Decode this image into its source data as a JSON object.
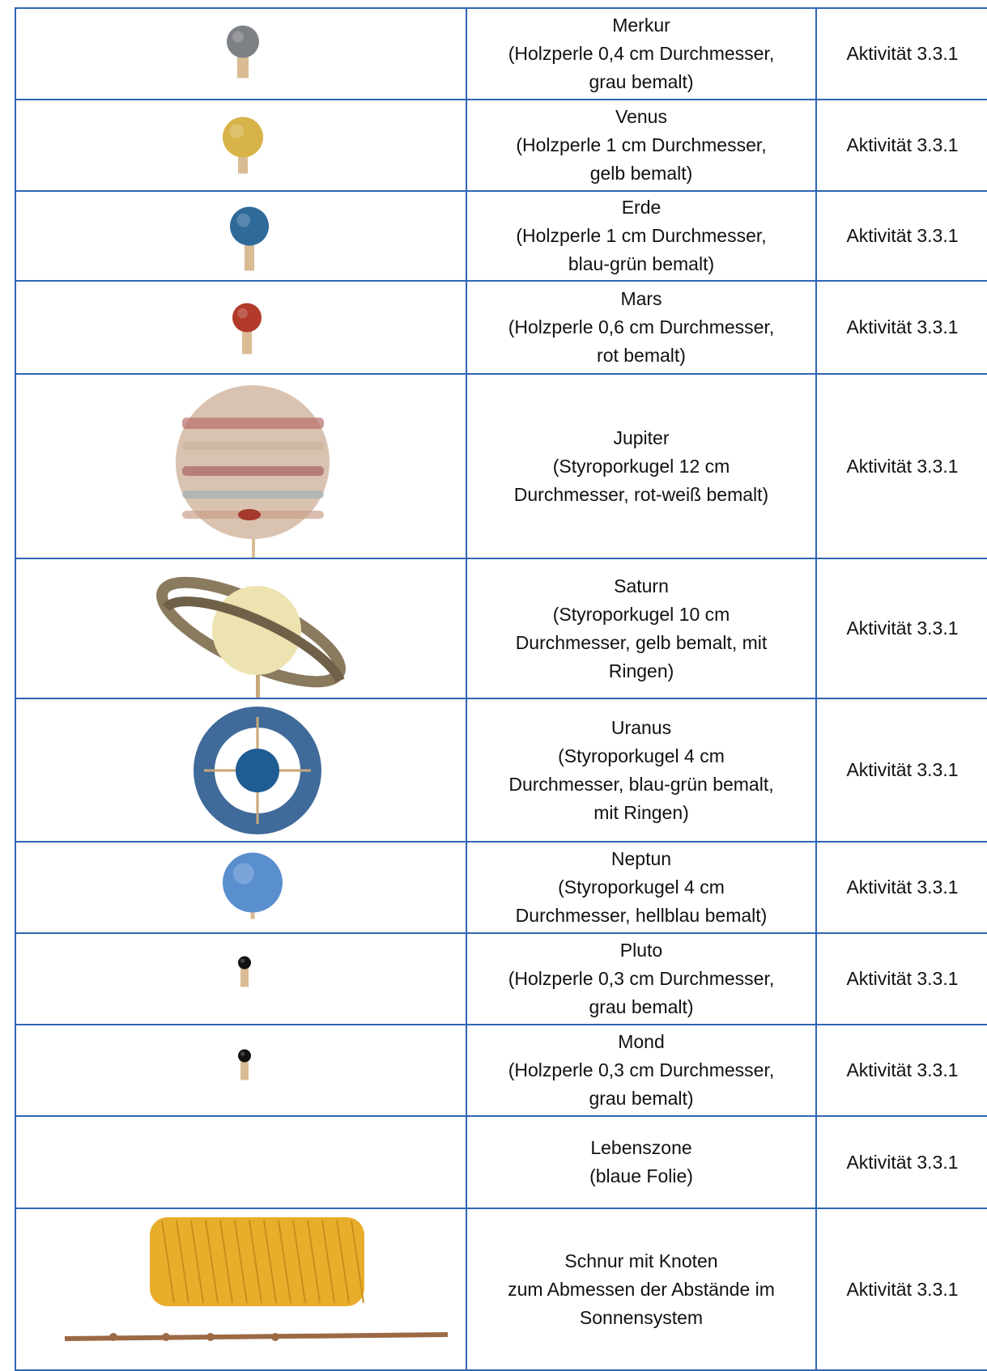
{
  "table": {
    "rows": [
      {
        "lines": [
          "Merkur",
          "(Holzperle 0,4 cm Durchmesser,",
          "grau bemalt)"
        ],
        "activity": "Aktivität 3.3.1"
      },
      {
        "lines": [
          "Venus",
          "(Holzperle 1 cm Durchmesser,",
          "gelb bemalt)"
        ],
        "activity": "Aktivität 3.3.1"
      },
      {
        "lines": [
          "Erde",
          "(Holzperle 1 cm Durchmesser,",
          "blau-grün bemalt)"
        ],
        "activity": "Aktivität 3.3.1"
      },
      {
        "lines": [
          "Mars",
          "(Holzperle 0,6 cm Durchmesser,",
          "rot bemalt)"
        ],
        "activity": "Aktivität 3.3.1"
      },
      {
        "lines": [
          "Jupiter",
          "(Styroporkugel 12 cm",
          "Durchmesser, rot-weiß bemalt)"
        ],
        "activity": "Aktivität 3.3.1"
      },
      {
        "lines": [
          "Saturn",
          "(Styroporkugel 10 cm",
          "Durchmesser, gelb bemalt, mit",
          "Ringen)"
        ],
        "activity": "Aktivität 3.3.1"
      },
      {
        "lines": [
          "Uranus",
          "(Styroporkugel 4 cm",
          "Durchmesser, blau-grün bemalt,",
          "mit Ringen)"
        ],
        "activity": "Aktivität 3.3.1"
      },
      {
        "lines": [
          "Neptun",
          "(Styroporkugel 4 cm",
          "Durchmesser, hellblau bemalt)"
        ],
        "activity": "Aktivität 3.3.1"
      },
      {
        "lines": [
          "Pluto",
          "(Holzperle 0,3 cm Durchmesser,",
          "grau bemalt)"
        ],
        "activity": "Aktivität 3.3.1"
      },
      {
        "lines": [
          "Mond",
          "(Holzperle 0,3 cm Durchmesser,",
          "grau bemalt)"
        ],
        "activity": "Aktivität 3.3.1"
      },
      {
        "lines": [
          "Lebenszone",
          "(blaue Folie)"
        ],
        "activity": "Aktivität 3.3.1"
      },
      {
        "lines": [
          "Schnur mit Knoten",
          "zum Abmessen der Abstände im",
          "Sonnensystem"
        ],
        "activity": "Aktivität 3.3.1"
      }
    ]
  }
}
